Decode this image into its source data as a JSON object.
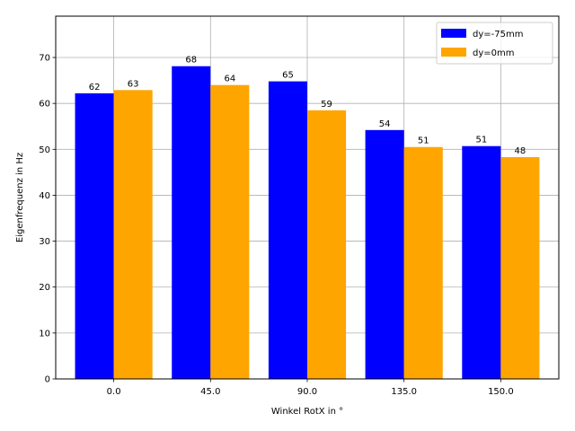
{
  "chart_data": {
    "type": "bar",
    "categories": [
      "0.0",
      "45.0",
      "90.0",
      "135.0",
      "150.0"
    ],
    "series": [
      {
        "name": "dy=-75mm",
        "color": "#0000ff",
        "values": [
          62.2,
          68.1,
          64.8,
          54.2,
          50.7
        ],
        "labels": [
          "62",
          "68",
          "65",
          "54",
          "51"
        ]
      },
      {
        "name": "dy=0mm",
        "color": "#ffa500",
        "values": [
          62.9,
          64.0,
          58.5,
          50.5,
          48.3
        ],
        "labels": [
          "63",
          "64",
          "59",
          "51",
          "48"
        ]
      }
    ],
    "xlabel": "Winkel RotX in °",
    "ylabel": "Eigenfrequenz in Hz",
    "ylim": [
      0,
      79
    ],
    "yticks": [
      0,
      10,
      20,
      30,
      40,
      50,
      60,
      70
    ],
    "grid": true,
    "legend_position": "top-right"
  }
}
